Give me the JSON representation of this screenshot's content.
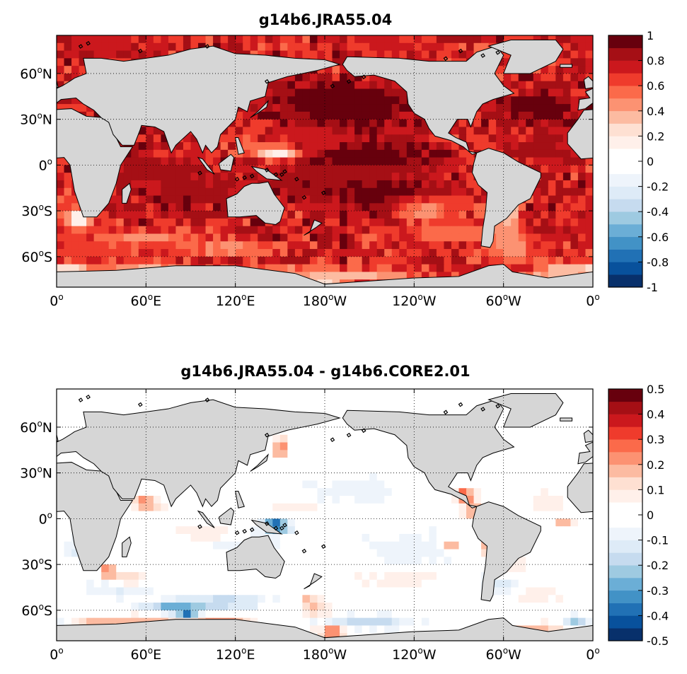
{
  "panels": [
    {
      "title": "g14b6.JRA55.04",
      "colorbar": {
        "min": -1,
        "max": 1,
        "levels": 20,
        "tick_labels": [
          "1",
          "0.8",
          "0.6",
          "0.4",
          "0.2",
          "0",
          "-0.2",
          "-0.4",
          "-0.6",
          "-0.8",
          "-1"
        ]
      }
    },
    {
      "title": "g14b6.JRA55.04 - g14b6.CORE2.01",
      "colorbar": {
        "min": -0.5,
        "max": 0.5,
        "levels": 20,
        "tick_labels": [
          "0.5",
          "0.4",
          "0.3",
          "0.2",
          "0.1",
          "0",
          "-0.1",
          "-0.2",
          "-0.3",
          "-0.4",
          "-0.5"
        ]
      }
    }
  ],
  "axes": {
    "lat_labels": [
      {
        "base": "60",
        "suffix": "N"
      },
      {
        "base": "30",
        "suffix": "N"
      },
      {
        "base": "0",
        "suffix": ""
      },
      {
        "base": "30",
        "suffix": "S"
      },
      {
        "base": "60",
        "suffix": "S"
      }
    ],
    "lon_labels": [
      {
        "base": "0",
        "suffix": ""
      },
      {
        "base": "60",
        "suffix": "E"
      },
      {
        "base": "120",
        "suffix": "E"
      },
      {
        "base": "180",
        "suffix": "W"
      },
      {
        "base": "120",
        "suffix": "W"
      },
      {
        "base": "60",
        "suffix": "W"
      },
      {
        "base": "0",
        "suffix": ""
      }
    ],
    "degree_symbol": "o"
  },
  "colors": {
    "land": "#d6d6d6",
    "palette": [
      "#08306b",
      "#08519c",
      "#2171b5",
      "#4292c6",
      "#6baed6",
      "#9ecae1",
      "#c6dbef",
      "#deebf7",
      "#eef4fb",
      "#ffffff",
      "#ffffff",
      "#fff0ea",
      "#fee0d2",
      "#fcbba1",
      "#fc9272",
      "#fb6a4a",
      "#ef3b2c",
      "#cb181d",
      "#a50f15",
      "#67000d"
    ]
  }
}
